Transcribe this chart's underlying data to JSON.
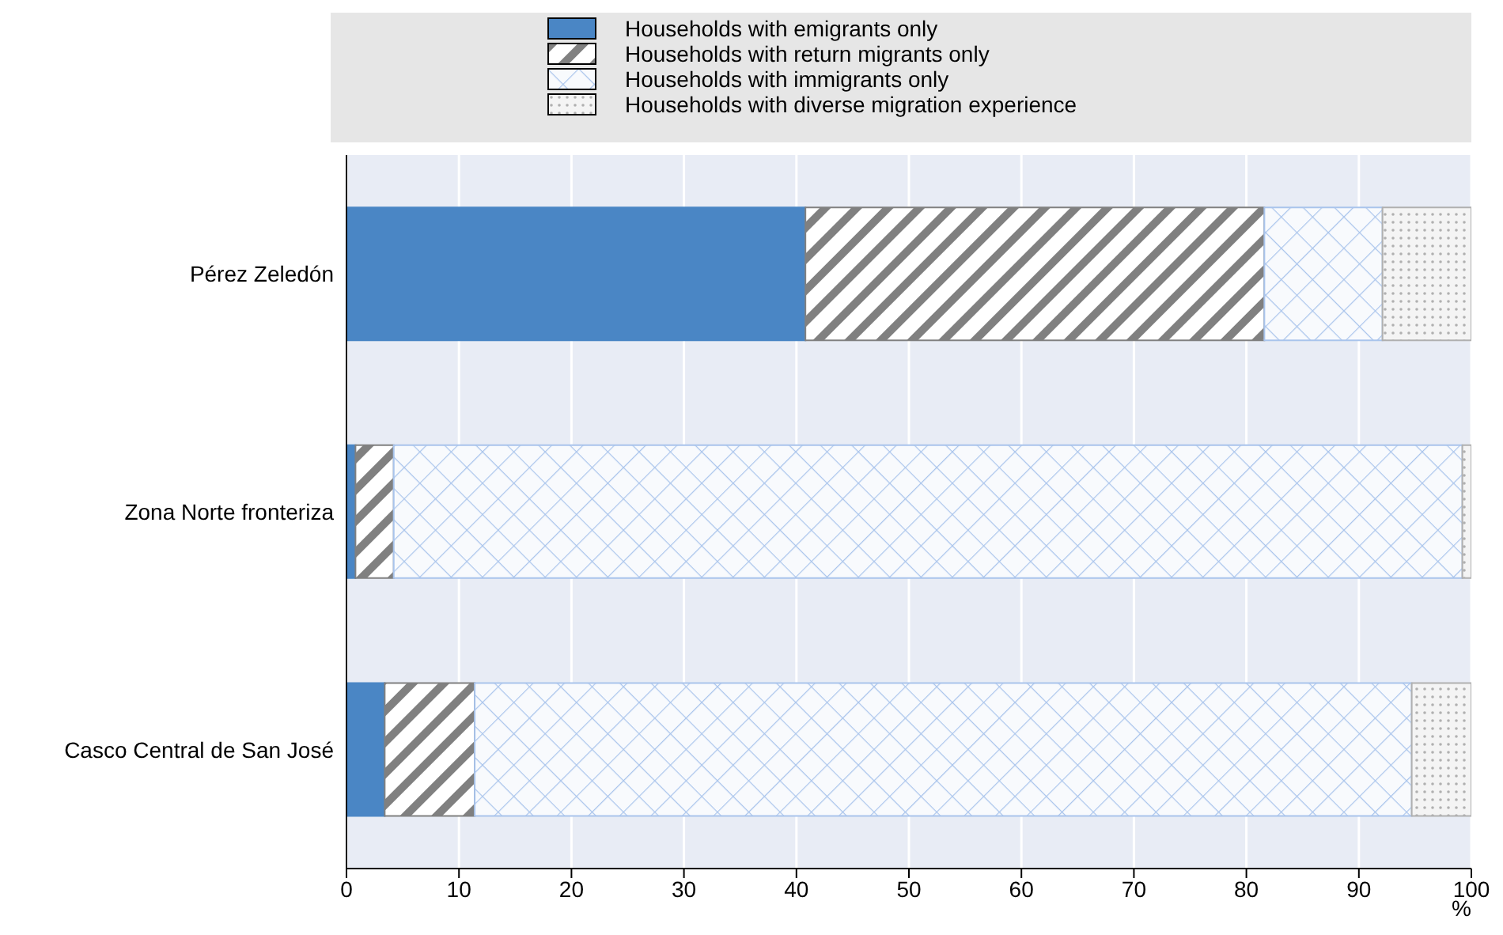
{
  "chart_data": {
    "type": "bar",
    "orientation": "horizontal",
    "stacked": true,
    "xlabel": "%",
    "categories": [
      "Pérez Zeledón",
      "Zona Norte fronteriza",
      "Casco Central de San José"
    ],
    "series": [
      {
        "name": "Households with emigrants only",
        "color": "#4a86c5",
        "values": [
          40.8,
          0.8,
          3.4
        ]
      },
      {
        "name": "Households with return migrants only",
        "color": "#808080",
        "values": [
          40.8,
          3.4,
          8.0
        ]
      },
      {
        "name": "Households with immigrants only",
        "color": "#a9c4ec",
        "values": [
          10.5,
          95.0,
          83.3
        ]
      },
      {
        "name": "Households with diverse migration experience",
        "color": "#b0b0b0",
        "values": [
          7.9,
          0.8,
          5.3
        ]
      }
    ],
    "xlim": [
      0,
      100
    ],
    "xticks": [
      0,
      10,
      20,
      30,
      40,
      50,
      60,
      70,
      80,
      90,
      100
    ],
    "grid": "x",
    "legend": "top"
  }
}
